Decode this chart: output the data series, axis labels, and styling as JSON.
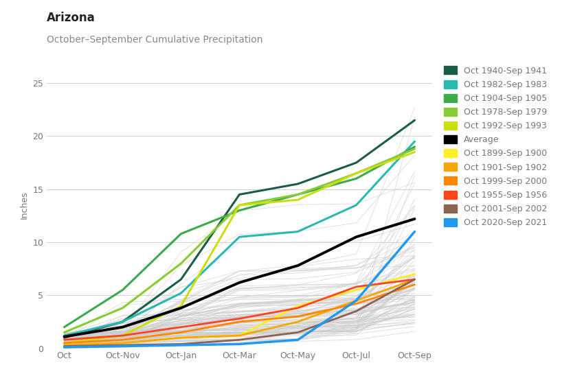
{
  "title": "Arizona",
  "subtitle": "October–September Cumulative Precipitation",
  "ylabel": "Inches",
  "x_tick_labels": [
    "Oct",
    "Oct-Nov",
    "Oct-Jan",
    "Oct-Mar",
    "Oct-May",
    "Oct-Jul",
    "Oct-Sep"
  ],
  "ylim": [
    0,
    27
  ],
  "yticks": [
    0,
    5,
    10,
    15,
    20,
    25
  ],
  "background_color": "#ffffff",
  "grid_color": "#d0d0d0",
  "gray_line_color": "#cccccc",
  "title_fontsize": 12,
  "subtitle_fontsize": 10,
  "axis_label_fontsize": 9,
  "tick_fontsize": 9,
  "legend_fontsize": 9,
  "highlighted_series": {
    "Oct 1940-Sep 1941": {
      "color": "#1a5c45",
      "lw": 2.2,
      "values": [
        1.0,
        2.5,
        6.5,
        14.5,
        15.5,
        17.5,
        21.5
      ]
    },
    "Oct 1982-Sep 1983": {
      "color": "#2ab8b0",
      "lw": 2.2,
      "values": [
        1.2,
        2.5,
        5.2,
        10.5,
        11.0,
        13.5,
        19.5
      ]
    },
    "Oct 1904-Sep 1905": {
      "color": "#3aaa4a",
      "lw": 2.2,
      "values": [
        2.0,
        5.5,
        10.8,
        13.0,
        14.5,
        16.0,
        19.0
      ]
    },
    "Oct 1978-Sep 1979": {
      "color": "#88cc33",
      "lw": 2.2,
      "values": [
        1.5,
        3.8,
        8.0,
        13.5,
        14.5,
        16.5,
        18.8
      ]
    },
    "Oct 1992-Sep 1993": {
      "color": "#ccdd11",
      "lw": 2.2,
      "values": [
        0.5,
        1.2,
        4.0,
        13.5,
        14.0,
        16.5,
        18.5
      ]
    },
    "Average": {
      "color": "#000000",
      "lw": 2.8,
      "values": [
        1.1,
        2.0,
        3.8,
        6.2,
        7.8,
        10.5,
        12.2
      ]
    },
    "Oct 1899-Sep 1900": {
      "color": "#ffee22",
      "lw": 2.0,
      "values": [
        0.2,
        0.5,
        1.0,
        1.2,
        4.0,
        5.5,
        7.0
      ]
    },
    "Oct 1901-Sep 1902": {
      "color": "#f5a800",
      "lw": 2.0,
      "values": [
        0.3,
        0.5,
        1.0,
        1.2,
        2.5,
        4.5,
        6.5
      ]
    },
    "Oct 1999-Sep 2000": {
      "color": "#ff8800",
      "lw": 2.0,
      "values": [
        0.5,
        0.8,
        1.5,
        2.5,
        3.0,
        4.2,
        6.0
      ]
    },
    "Oct 1955-Sep 1956": {
      "color": "#ff4422",
      "lw": 2.0,
      "values": [
        0.8,
        1.2,
        2.0,
        2.8,
        3.8,
        5.8,
        6.5
      ]
    },
    "Oct 2001-Sep 2002": {
      "color": "#8b6355",
      "lw": 2.0,
      "values": [
        0.2,
        0.3,
        0.4,
        0.8,
        1.5,
        3.5,
        6.5
      ]
    },
    "Oct 2020-Sep 2021": {
      "color": "#2299ee",
      "lw": 2.5,
      "values": [
        0.1,
        0.2,
        0.3,
        0.4,
        0.8,
        4.5,
        11.0
      ]
    }
  },
  "num_gray_lines": 110,
  "gray_line_alpha": 0.6,
  "gray_line_lw": 0.7
}
